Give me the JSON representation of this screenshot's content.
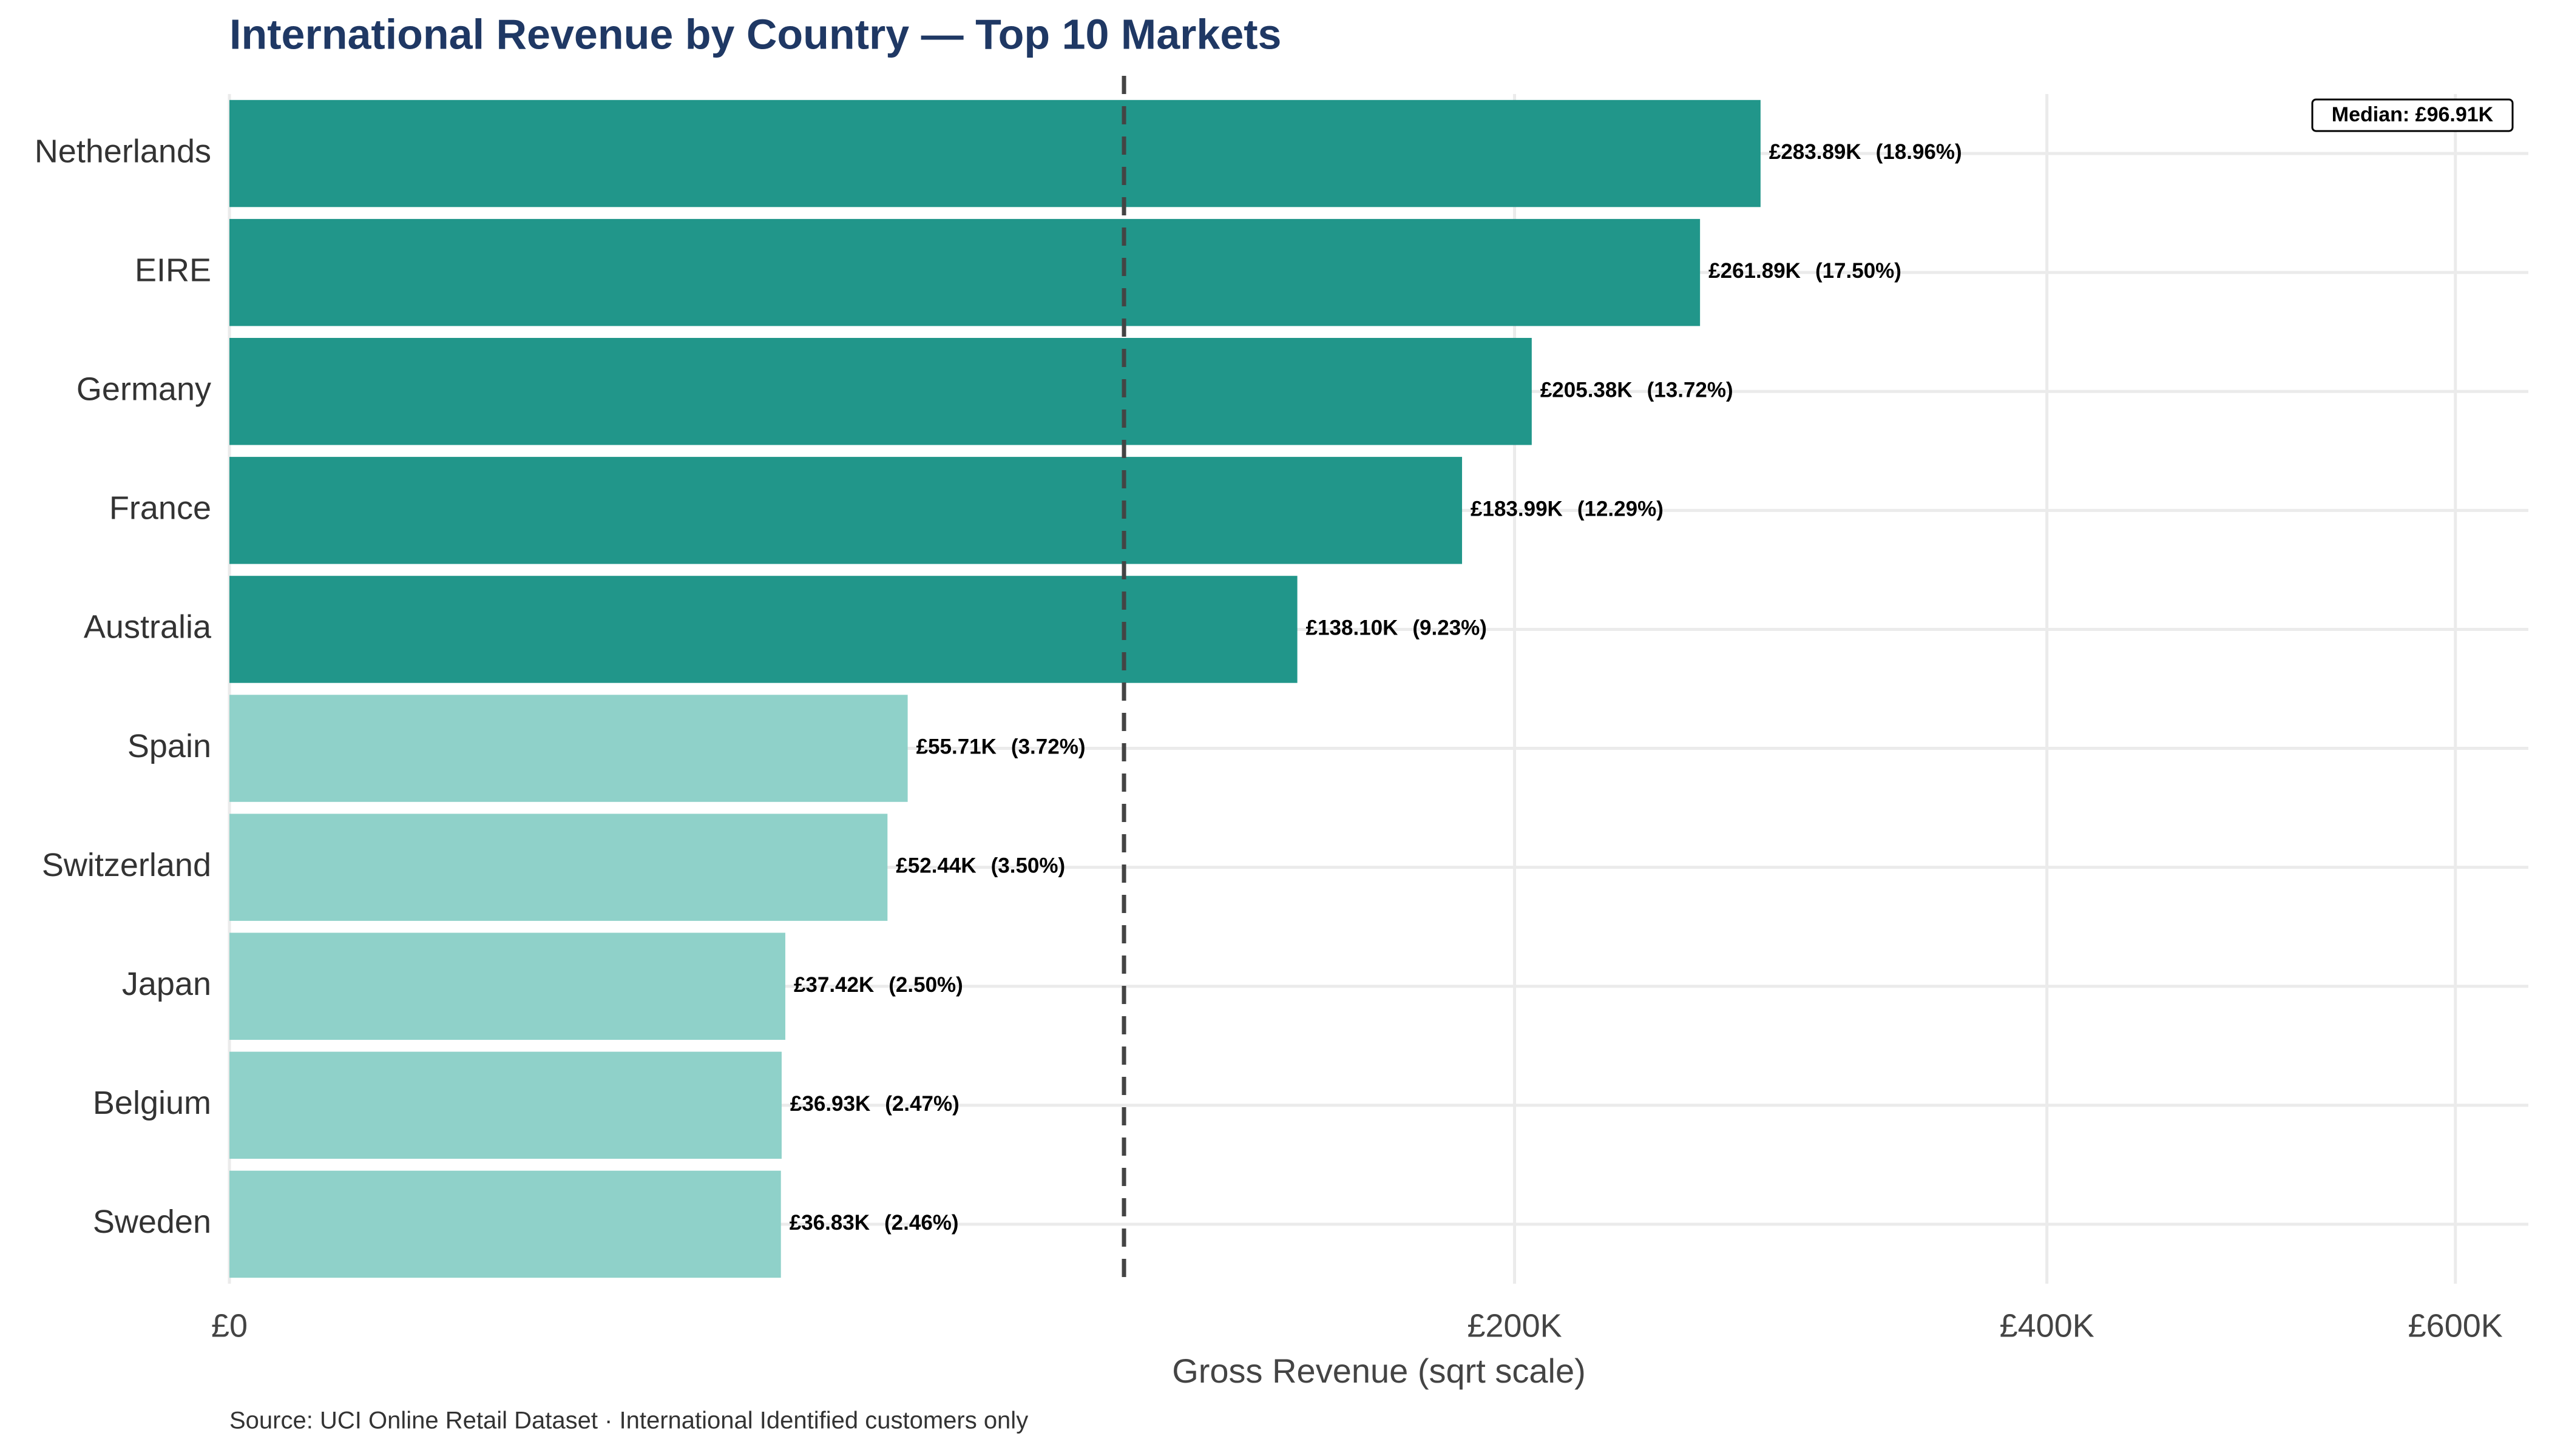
{
  "chart_data": {
    "type": "bar",
    "orientation": "horizontal",
    "title": "International Revenue by Country — Top 10 Markets",
    "x_label": "Gross Revenue (sqrt scale)",
    "caption": "Source: UCI Online Retail Dataset · International Identified customers only",
    "x_scale": "sqrt",
    "categories": [
      "Netherlands",
      "EIRE",
      "Germany",
      "France",
      "Australia",
      "Spain",
      "Switzerland",
      "Japan",
      "Belgium",
      "Sweden"
    ],
    "values": [
      283890,
      261890,
      205380,
      183990,
      138100,
      55710,
      52440,
      37420,
      36930,
      36830
    ],
    "value_labels": [
      "£283.89K",
      "£261.89K",
      "£205.38K",
      "£183.99K",
      "£138.10K",
      "£55.71K",
      "£52.44K",
      "£37.42K",
      "£36.93K",
      "£36.83K"
    ],
    "share_labels": [
      "(18.96%)",
      "(17.50%)",
      "(13.72%)",
      "(12.29%)",
      "(9.23%)",
      "(3.72%)",
      "(3.50%)",
      "(2.50%)",
      "(2.47%)",
      "(2.46%)"
    ],
    "colors": [
      "#21968a",
      "#21968a",
      "#21968a",
      "#21968a",
      "#21968a",
      "#8fd1c9",
      "#8fd1c9",
      "#8fd1c9",
      "#8fd1c9",
      "#8fd1c9"
    ],
    "median": 96910,
    "median_label": "Median: £96.91K",
    "xlim": [
      0,
      640000
    ],
    "xticks": [
      {
        "value": 0,
        "label": "£0"
      },
      {
        "value": 200000,
        "label": "£200K"
      },
      {
        "value": 400000,
        "label": "£400K"
      },
      {
        "value": 600000,
        "label": "£600K"
      }
    ],
    "grid": true
  }
}
